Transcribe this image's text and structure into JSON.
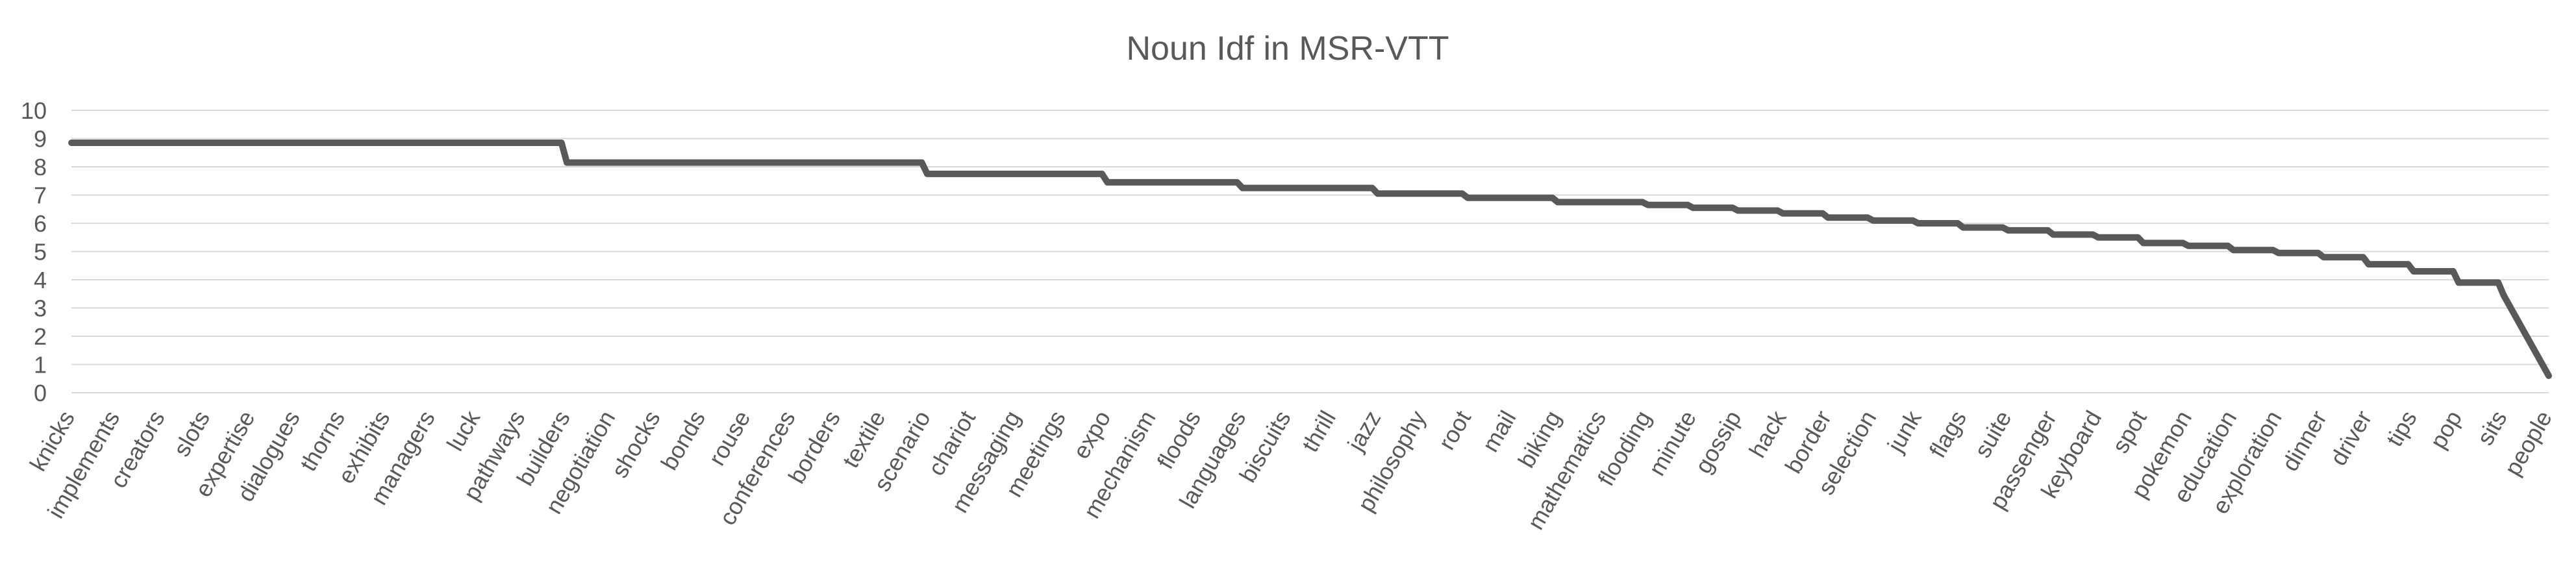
{
  "chart_data": {
    "type": "line",
    "title": "Noun Idf in MSR-VTT",
    "xlabel": "",
    "ylabel": "",
    "ylim": [
      0,
      10
    ],
    "yticks": [
      0,
      1,
      2,
      3,
      4,
      5,
      6,
      7,
      8,
      9,
      10
    ],
    "grid": true,
    "legend": "none",
    "series_color": "#595959",
    "grid_color": "#d9d9d9",
    "categories": [
      "knicks",
      "implements",
      "creators",
      "slots",
      "expertise",
      "dialogues",
      "thorns",
      "exhibits",
      "managers",
      "luck",
      "pathways",
      "builders",
      "negotiation",
      "shocks",
      "bonds",
      "rouse",
      "conferences",
      "borders",
      "textile",
      "scenario",
      "chariot",
      "messaging",
      "meetings",
      "expo",
      "mechanism",
      "floods",
      "languages",
      "biscuits",
      "thrill",
      "jazz",
      "philosophy",
      "root",
      "mail",
      "biking",
      "mathematics",
      "flooding",
      "minute",
      "gossip",
      "hack",
      "border",
      "selection",
      "junk",
      "flags",
      "suite",
      "passenger",
      "keyboard",
      "spot",
      "pokemon",
      "education",
      "exploration",
      "dinner",
      "driver",
      "tips",
      "pop",
      "sits",
      "people"
    ],
    "values": [
      8.85,
      8.85,
      8.85,
      8.85,
      8.85,
      8.85,
      8.85,
      8.85,
      8.85,
      8.85,
      8.85,
      8.15,
      8.15,
      8.15,
      8.15,
      8.15,
      8.15,
      8.15,
      8.15,
      7.75,
      7.75,
      7.75,
      7.75,
      7.45,
      7.45,
      7.45,
      7.25,
      7.25,
      7.25,
      7.05,
      7.05,
      6.9,
      6.9,
      6.75,
      6.75,
      6.65,
      6.55,
      6.45,
      6.35,
      6.2,
      6.1,
      6.0,
      5.85,
      5.75,
      5.6,
      5.5,
      5.3,
      5.2,
      5.05,
      4.95,
      4.8,
      4.55,
      4.3,
      3.9,
      3.45,
      0.6
    ]
  }
}
